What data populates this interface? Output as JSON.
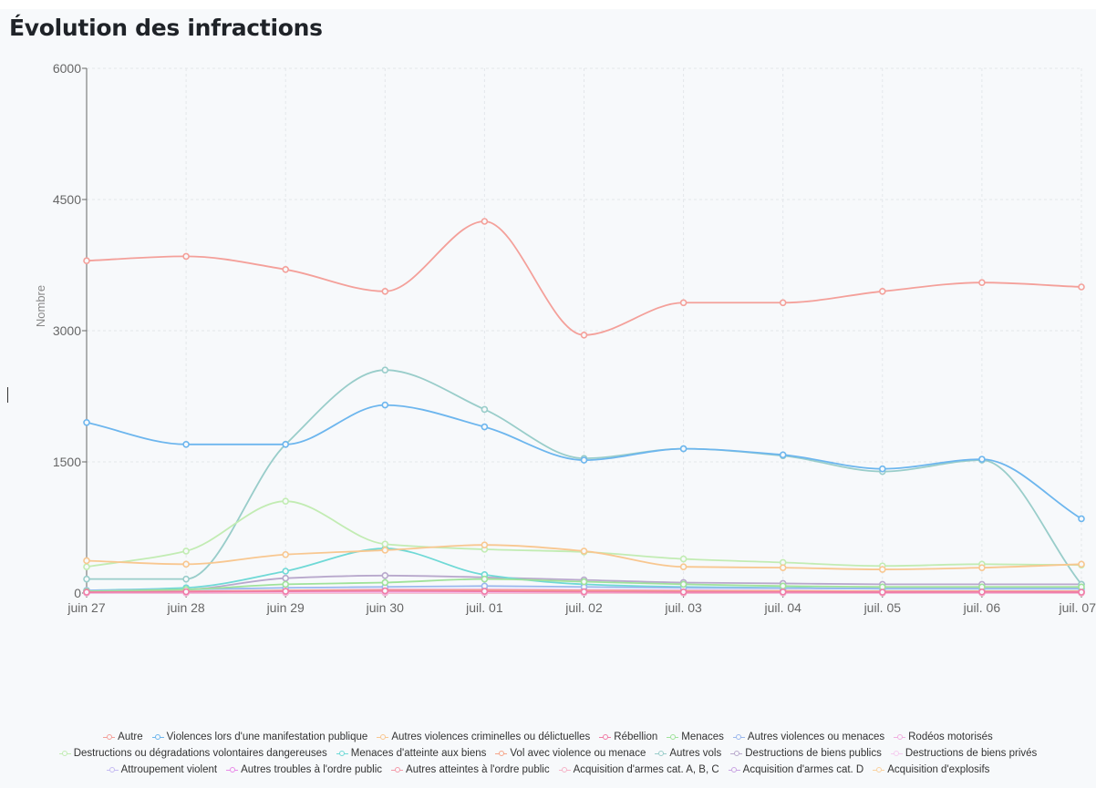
{
  "page": {
    "title": "Évolution des infractions"
  },
  "chart_data": {
    "type": "line",
    "ylabel": "Nombre",
    "xlabel": "",
    "ylim": [
      0,
      6000
    ],
    "yticks": [
      0,
      1500,
      3000,
      4500,
      6000
    ],
    "categories": [
      "juin 27",
      "juin 28",
      "juin 29",
      "juin 30",
      "juil. 01",
      "juil. 02",
      "juil. 03",
      "juil. 04",
      "juil. 05",
      "juil. 06",
      "juil. 07"
    ],
    "grid": true,
    "legend_position": "bottom",
    "series": [
      {
        "name": "Autre",
        "color": "#f4a09a",
        "values": [
          3800,
          3850,
          3700,
          3450,
          4250,
          2950,
          3320,
          3320,
          3450,
          3550,
          3500
        ]
      },
      {
        "name": "Violences lors d'une manifestation publique",
        "color": "#6db6ee",
        "values": [
          1950,
          1700,
          1700,
          2150,
          1900,
          1520,
          1650,
          1580,
          1420,
          1530,
          850
        ]
      },
      {
        "name": "Autres violences criminelles ou délictuelles",
        "color": "#f8c790",
        "values": [
          370,
          330,
          440,
          490,
          550,
          480,
          300,
          290,
          270,
          290,
          330
        ]
      },
      {
        "name": "Rébellion",
        "color": "#f07ca6",
        "values": [
          10,
          15,
          20,
          25,
          20,
          15,
          12,
          12,
          10,
          12,
          10
        ]
      },
      {
        "name": "Menaces",
        "color": "#9fe29a",
        "values": [
          20,
          40,
          100,
          120,
          160,
          130,
          100,
          80,
          70,
          70,
          70
        ]
      },
      {
        "name": "Autres violences ou menaces",
        "color": "#9bb8ee",
        "values": [
          30,
          40,
          60,
          70,
          80,
          70,
          60,
          55,
          50,
          50,
          50
        ]
      },
      {
        "name": "Rodéos motorisés",
        "color": "#f0b0e0",
        "values": [
          10,
          10,
          15,
          15,
          15,
          12,
          10,
          10,
          10,
          10,
          10
        ]
      },
      {
        "name": "Destructions ou dégradations volontaires dangereuses",
        "color": "#c2ecb3",
        "values": [
          300,
          480,
          1050,
          560,
          500,
          470,
          390,
          350,
          310,
          330,
          320
        ]
      },
      {
        "name": "Menaces d'atteinte aux biens",
        "color": "#6fd9d6",
        "values": [
          30,
          60,
          250,
          510,
          210,
          100,
          70,
          60,
          50,
          50,
          50
        ]
      },
      {
        "name": "Vol avec violence ou menace",
        "color": "#f5a58a",
        "values": [
          15,
          20,
          30,
          35,
          35,
          30,
          25,
          25,
          20,
          20,
          20
        ]
      },
      {
        "name": "Autres vols",
        "color": "#99cdca",
        "values": [
          160,
          160,
          1700,
          2550,
          2100,
          1540,
          1650,
          1570,
          1390,
          1520,
          100
        ]
      },
      {
        "name": "Destructions de biens publics",
        "color": "#b8a8cc",
        "values": [
          20,
          40,
          170,
          200,
          180,
          150,
          120,
          110,
          100,
          100,
          100
        ]
      },
      {
        "name": "Destructions de biens privés",
        "color": "#f5ccf0",
        "values": [
          5,
          5,
          10,
          10,
          10,
          8,
          8,
          6,
          6,
          6,
          6
        ]
      },
      {
        "name": "Attroupement violent",
        "color": "#c5bbf2",
        "values": [
          5,
          10,
          20,
          30,
          30,
          25,
          20,
          20,
          15,
          15,
          15
        ]
      },
      {
        "name": "Autres troubles à l'ordre public",
        "color": "#e98ae8",
        "values": [
          10,
          15,
          30,
          40,
          40,
          35,
          30,
          25,
          20,
          20,
          20
        ]
      },
      {
        "name": "Autres atteintes à l'ordre public",
        "color": "#f39aa8",
        "values": [
          5,
          5,
          10,
          10,
          10,
          10,
          8,
          8,
          5,
          5,
          5
        ]
      },
      {
        "name": "Acquisition d'armes cat. A, B, C",
        "color": "#f6b4c8",
        "values": [
          2,
          2,
          3,
          3,
          3,
          3,
          2,
          2,
          2,
          2,
          2
        ]
      },
      {
        "name": "Acquisition d'armes cat. D",
        "color": "#c9a4e2",
        "values": [
          2,
          2,
          3,
          3,
          3,
          3,
          2,
          2,
          2,
          2,
          2
        ]
      },
      {
        "name": "Acquisition d'explosifs",
        "color": "#f9d2a0",
        "values": [
          1,
          1,
          2,
          2,
          2,
          2,
          1,
          1,
          1,
          1,
          1
        ]
      }
    ],
    "legend_rows": [
      [
        0,
        1,
        2,
        3,
        4,
        5,
        6
      ],
      [
        7,
        8,
        9,
        10,
        11,
        12
      ],
      [
        13,
        14,
        15,
        16,
        17,
        18
      ]
    ]
  }
}
